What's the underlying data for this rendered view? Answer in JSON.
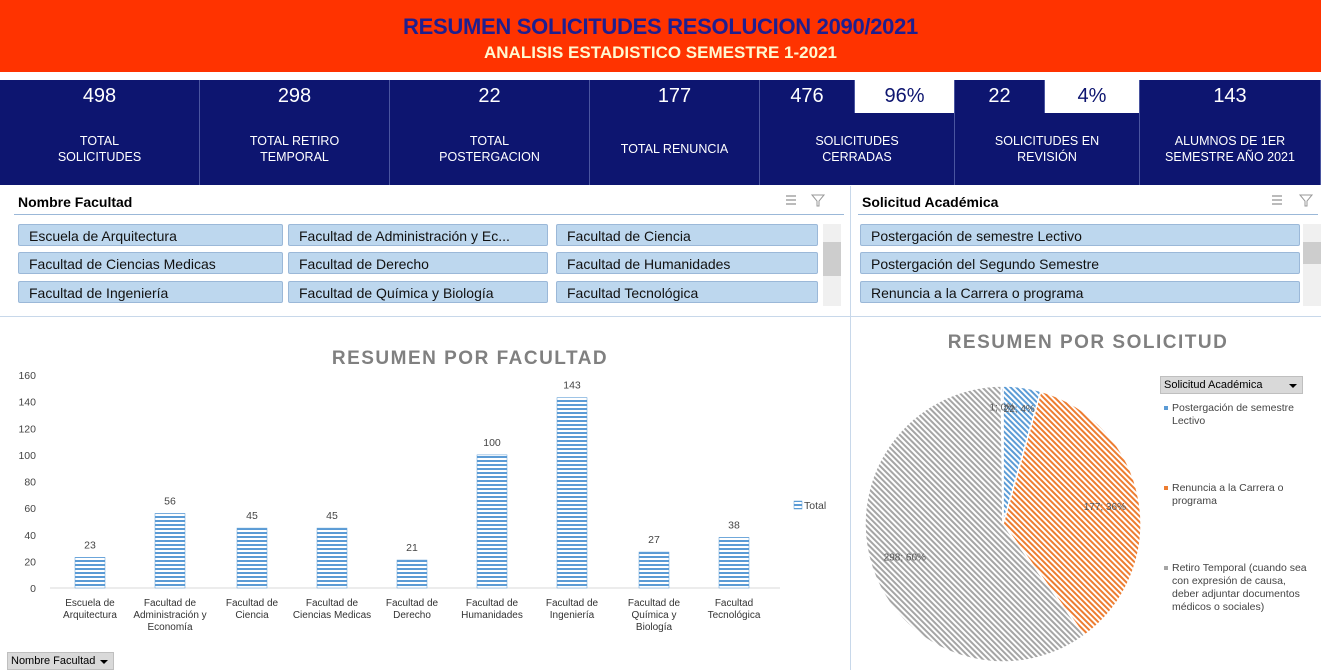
{
  "header": {
    "title": "RESUMEN SOLICITUDES RESOLUCION 2090/2021",
    "subtitle": "ANALISIS ESTADISTICO SEMESTRE 1-2021"
  },
  "kpi_values": [
    "498",
    "298",
    "22",
    "177",
    "476",
    "96%",
    "22",
    "4%",
    "143"
  ],
  "kpi_labels": [
    "TOTAL SOLICITUDES",
    "TOTAL RETIRO TEMPORAL",
    "TOTAL POSTERGACION",
    "TOTAL RENUNCIA",
    "SOLICITUDES CERRADAS",
    "SOLICITUDES EN REVISIÓN",
    "ALUMNOS DE 1ER SEMESTRE AÑO 2021"
  ],
  "slicers": [
    {
      "title": "Nombre Facultad",
      "items": [
        "Escuela de Arquitectura",
        "Facultad de Administración y Ec...",
        "Facultad de Ciencia",
        "Facultad de Ciencias Medicas",
        "Facultad de Derecho",
        "Facultad de Humanidades",
        "Facultad de Ingeniería",
        "Facultad de Química y Biología",
        "Facultad Tecnológica"
      ]
    },
    {
      "title": "Solicitud Académica",
      "items": [
        "Postergación de semestre Lectivo",
        "Postergación del Segundo Semestre",
        "Renuncia a la Carrera o programa"
      ]
    }
  ],
  "filter_button": "Nombre Facultad",
  "chart_data": [
    {
      "type": "bar",
      "title": "RESUMEN POR FACULTAD",
      "categories": [
        "Escuela de Arquitectura",
        "Facultad de Administración y Economía",
        "Facultad de Ciencia",
        "Facultad de Ciencias Medicas",
        "Facultad de Derecho",
        "Facultad de Humanidades",
        "Facultad de Ingeniería",
        "Facultad de Química y Biología",
        "Facultad Tecnológica"
      ],
      "series": [
        {
          "name": "Total",
          "color": "#5b9bd5",
          "values": [
            23,
            56,
            45,
            45,
            21,
            100,
            143,
            27,
            38
          ]
        }
      ],
      "ylim": [
        0,
        160
      ],
      "yticks": [
        0,
        20,
        40,
        60,
        80,
        100,
        120,
        140,
        160
      ]
    },
    {
      "type": "pie",
      "title": "RESUMEN POR SOLICITUD",
      "legend_title": "Solicitud Académica",
      "categories": [
        "Postergación de semestre Lectivo",
        "Renuncia a la Carrera o programa",
        "Retiro Temporal (cuando sea con expresión de causa, deber adjuntar documentos médicos o sociales)",
        null
      ],
      "values": [
        22,
        177,
        298,
        1
      ],
      "value_labels": [
        "22; 4%",
        "177; 36%",
        "298; 60%",
        "1; 0%"
      ],
      "colors": [
        "#5b9bd5",
        "#ed7d31",
        "#a5a5a5",
        "#4472c4"
      ]
    }
  ]
}
